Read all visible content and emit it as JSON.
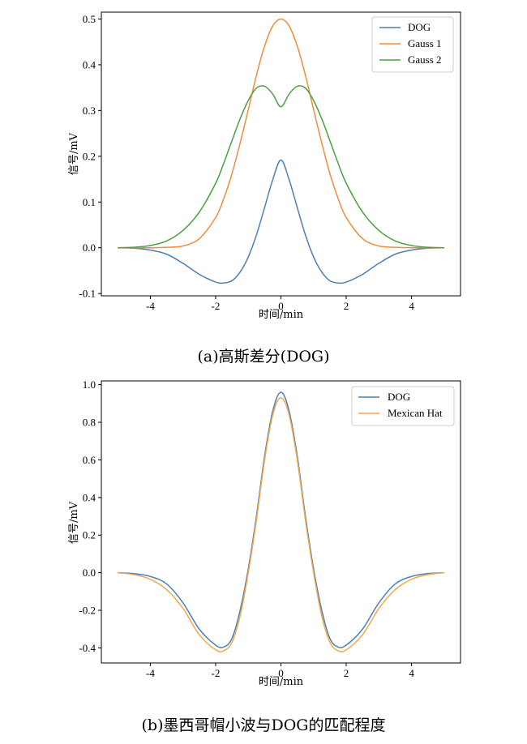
{
  "chart_data": [
    {
      "type": "line",
      "caption": "(a)高斯差分(DOG)",
      "xlabel": "时间/min",
      "ylabel": "信号/mV",
      "xlim": [
        -5.5,
        5.5
      ],
      "ylim": [
        -0.105,
        0.515
      ],
      "xticks": [
        -4,
        -2,
        0,
        2,
        4
      ],
      "yticks": [
        -0.1,
        0.0,
        0.1,
        0.2,
        0.3,
        0.4,
        0.5
      ],
      "xtick_labels": [
        "-4",
        "-2",
        "0",
        "2",
        "4"
      ],
      "ytick_labels": [
        "-0.1",
        "0.0",
        "0.1",
        "0.2",
        "0.3",
        "0.4",
        "0.5"
      ],
      "grid": false,
      "legend_position": "top-right",
      "x": [
        -5,
        -4.5,
        -4,
        -3.5,
        -3,
        -2.5,
        -2,
        -1.75,
        -1.5,
        -1.25,
        -1,
        -0.75,
        -0.5,
        -0.25,
        0,
        0.25,
        0.5,
        0.75,
        1,
        1.25,
        1.5,
        1.75,
        2,
        2.5,
        3,
        3.5,
        4,
        4.5,
        5
      ],
      "series": [
        {
          "name": "DOG",
          "color": "#4c7fb5",
          "values": [
            0.0,
            -0.001,
            -0.005,
            -0.014,
            -0.034,
            -0.058,
            -0.075,
            -0.077,
            -0.072,
            -0.053,
            -0.02,
            0.028,
            0.088,
            0.149,
            0.192,
            0.149,
            0.088,
            0.028,
            -0.02,
            -0.053,
            -0.072,
            -0.077,
            -0.075,
            -0.058,
            -0.034,
            -0.014,
            -0.005,
            -0.001,
            0.0
          ]
        },
        {
          "name": "Gauss 1",
          "color": "#f28c3c",
          "values": [
            0.0,
            0.0,
            0.0,
            0.001,
            0.004,
            0.02,
            0.066,
            0.108,
            0.162,
            0.229,
            0.302,
            0.377,
            0.441,
            0.485,
            0.5,
            0.485,
            0.441,
            0.377,
            0.302,
            0.229,
            0.162,
            0.108,
            0.066,
            0.02,
            0.004,
            0.001,
            0.0,
            0.0,
            0.0
          ]
        },
        {
          "name": "Gauss 2",
          "color": "#4aa040",
          "values": [
            0.0,
            0.001,
            0.005,
            0.015,
            0.038,
            0.078,
            0.141,
            0.185,
            0.234,
            0.282,
            0.322,
            0.349,
            0.353,
            0.336,
            0.308,
            0.336,
            0.353,
            0.349,
            0.322,
            0.282,
            0.234,
            0.185,
            0.141,
            0.078,
            0.038,
            0.015,
            0.005,
            0.001,
            0.0
          ]
        }
      ]
    },
    {
      "type": "line",
      "caption": "(b)墨西哥帽小波与DOG的匹配程度",
      "xlabel": "时间/min",
      "ylabel": "信号/mV",
      "xlim": [
        -5.5,
        5.5
      ],
      "ylim": [
        -0.48,
        1.02
      ],
      "xticks": [
        -4,
        -2,
        0,
        2,
        4
      ],
      "yticks": [
        -0.4,
        -0.2,
        0.0,
        0.2,
        0.4,
        0.6,
        0.8,
        1.0
      ],
      "xtick_labels": [
        "-4",
        "-2",
        "0",
        "2",
        "4"
      ],
      "ytick_labels": [
        "-0.4",
        "-0.2",
        "0.0",
        "0.2",
        "0.4",
        "0.6",
        "0.8",
        "1.0"
      ],
      "grid": false,
      "legend_position": "top-right",
      "x": [
        -5,
        -4.5,
        -4,
        -3.5,
        -3,
        -2.5,
        -2,
        -1.75,
        -1.5,
        -1.25,
        -1,
        -0.75,
        -0.5,
        -0.25,
        0,
        0.25,
        0.5,
        0.75,
        1,
        1.25,
        1.5,
        1.75,
        2,
        2.5,
        3,
        3.5,
        4,
        4.5,
        5
      ],
      "series": [
        {
          "name": "DOG",
          "color": "#4c7fb5",
          "values": [
            0.0,
            -0.005,
            -0.02,
            -0.06,
            -0.16,
            -0.3,
            -0.385,
            -0.395,
            -0.35,
            -0.2,
            0.02,
            0.3,
            0.62,
            0.86,
            0.96,
            0.86,
            0.62,
            0.3,
            0.02,
            -0.2,
            -0.35,
            -0.395,
            -0.385,
            -0.3,
            -0.16,
            -0.06,
            -0.02,
            -0.005,
            0.0
          ]
        },
        {
          "name": "Mexican Hat",
          "color": "#f5a84a",
          "values": [
            0.0,
            -0.01,
            -0.035,
            -0.09,
            -0.19,
            -0.33,
            -0.41,
            -0.415,
            -0.37,
            -0.23,
            0.0,
            0.28,
            0.6,
            0.84,
            0.93,
            0.84,
            0.6,
            0.28,
            0.0,
            -0.23,
            -0.37,
            -0.415,
            -0.41,
            -0.33,
            -0.19,
            -0.09,
            -0.035,
            -0.01,
            0.0
          ]
        }
      ]
    }
  ]
}
